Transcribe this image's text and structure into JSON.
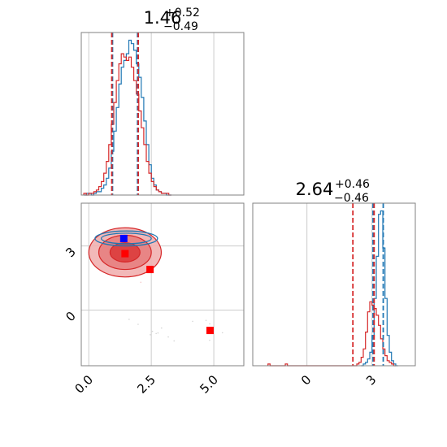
{
  "chart_data": {
    "type": "corner",
    "colors": {
      "blue": "#1f77b4",
      "red": "#d62728",
      "marker_blue": "#0000ff",
      "marker_red": "#ff0000",
      "grid": "#cccccc",
      "axis": "#808080"
    },
    "panels": [
      {
        "id": "hist-param1",
        "type": "histogram",
        "title": {
          "main": "1.46",
          "upper": "+0.52",
          "lower": "−0.49"
        },
        "xlim": [
          -0.3,
          6.2
        ],
        "grid_x": [
          0.0,
          2.5,
          5.0
        ],
        "bin_width": 0.1,
        "series": [
          {
            "color": "blue",
            "start": -0.2,
            "counts": [
              0,
              1,
              1,
              0,
              1,
              2,
              2,
              4,
              6,
              10,
              16,
              26,
              38,
              52,
              66,
              76,
              80,
              84,
              92,
              90,
              86,
              78,
              70,
              58,
              44,
              30,
              18,
              10,
              6,
              3,
              2,
              1,
              1,
              0,
              0
            ]
          },
          {
            "color": "red",
            "start": -0.2,
            "counts": [
              1,
              0,
              1,
              1,
              2,
              3,
              5,
              8,
              13,
              20,
              30,
              42,
              55,
              68,
              78,
              84,
              82,
              80,
              82,
              76,
              68,
              60,
              50,
              40,
              30,
              20,
              13,
              8,
              5,
              3,
              2,
              1,
              1,
              1,
              0
            ]
          }
        ],
        "quantiles": [
          {
            "color": "blue",
            "values": [
              0.95,
              1.95
            ]
          },
          {
            "color": "red",
            "values": [
              0.92,
              1.98
            ]
          }
        ]
      },
      {
        "id": "hist-param2",
        "type": "histogram",
        "title": {
          "main": "2.64",
          "upper": "+0.46",
          "lower": "−0.46"
        },
        "xlim": [
          -2.5,
          5.0
        ],
        "grid_x": [
          0,
          3
        ],
        "bin_width": 0.1,
        "series": [
          {
            "color": "blue",
            "start": 2.5,
            "counts": [
              0,
              1,
              2,
              4,
              8,
              18,
              40,
              65,
              90,
              92,
              70,
              40,
              18,
              8,
              3,
              1,
              0
            ]
          },
          {
            "color": "red",
            "start": -1.8,
            "counts": [
              1,
              0,
              0,
              0,
              0,
              0,
              0,
              0,
              1,
              0,
              0,
              0,
              0,
              0,
              0,
              0,
              0,
              0,
              0,
              0,
              0,
              0,
              0,
              0,
              0,
              0,
              0,
              0,
              0,
              0,
              0,
              0,
              0,
              0,
              0,
              0,
              0,
              0,
              0,
              0,
              0,
              1,
              2,
              5,
              10,
              20,
              32,
              38,
              36,
              34,
              30,
              24,
              16,
              10,
              6,
              3,
              2,
              1,
              0
            ]
          }
        ],
        "quantiles": [
          {
            "color": "blue",
            "values": [
              3.05,
              3.52
            ]
          },
          {
            "color": "red",
            "values": [
              2.12,
              3.1
            ]
          }
        ]
      },
      {
        "id": "joint",
        "type": "scatter-contour",
        "xlim": [
          -0.3,
          6.2
        ],
        "ylim": [
          -2.6,
          5.0
        ],
        "x_ticks": [
          "0.0",
          "2.5",
          "5.0"
        ],
        "x_tick_values": [
          0.0,
          2.5,
          5.0
        ],
        "y_ticks": [
          "0",
          "3"
        ],
        "y_tick_values": [
          0,
          3
        ],
        "blue_contours": [
          {
            "cx": 1.5,
            "cy": 3.35,
            "rx": 1.25,
            "ry": 0.35
          },
          {
            "cx": 1.5,
            "cy": 3.35,
            "rx": 1.0,
            "ry": 0.25
          }
        ],
        "red_contours": [
          {
            "cx": 1.45,
            "cy": 2.7,
            "rx": 1.45,
            "ry": 1.15
          },
          {
            "cx": 1.45,
            "cy": 2.7,
            "rx": 1.05,
            "ry": 0.8
          },
          {
            "cx": 1.45,
            "cy": 2.7,
            "rx": 0.6,
            "ry": 0.45
          }
        ],
        "markers": [
          {
            "color": "marker_blue",
            "x": 1.4,
            "y": 3.35
          },
          {
            "color": "marker_red",
            "x": 1.45,
            "y": 2.64
          },
          {
            "color": "marker_red",
            "x": 2.45,
            "y": 1.9
          },
          {
            "color": "marker_red",
            "x": 4.85,
            "y": -0.95
          }
        ]
      }
    ]
  }
}
